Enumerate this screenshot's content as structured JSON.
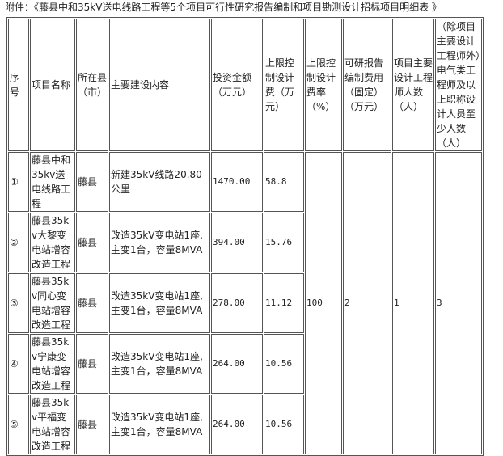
{
  "title": "附件：《藤县中和35kV送电线路工程等5个项目可行性研究报告编制和项目勘测设计招标项目明细表 》",
  "headers": [
    "序号",
    "项目名称",
    "所在县（市）",
    "主要建设内容",
    "投资金额（万元）",
    "上限控制设计费（万元）",
    "上限控制设计费率（%）",
    "可研报告编制费用（固定）（万元）",
    "项目主要设计工程师人数（人）",
    "（除项目主要设计工程师外）电气类工程师及以上职称设计人员至少人数（人）"
  ],
  "rows": [
    {
      "no": "①",
      "name": "藤县中和35kv送电线路工程",
      "county": "藤县",
      "content": "新建35kV线路20.80公里",
      "invest": "1470.00",
      "fee": "58.8"
    },
    {
      "no": "②",
      "name": "藤县35kv大黎变电站增容改造工程",
      "county": "藤县",
      "content": "改造35kV变电站1座,主变1台，容量8MVA",
      "invest": "394.00",
      "fee": "15.76"
    },
    {
      "no": "③",
      "name": "藤县35kv同心变电站增容改造工程",
      "county": "藤县",
      "content": "改造35kV变电站1座,主变1台，容量8MVA",
      "invest": "278.00",
      "fee": "11.12"
    },
    {
      "no": "④",
      "name": "藤县35kv宁康变电站增容改造工程",
      "county": "藤县",
      "content": "改造35kV变电站1座,主变1台，容量8MVA",
      "invest": "264.00",
      "fee": "10.56"
    },
    {
      "no": "⑤",
      "name": "藤县35kv平福变电站增容改造工程",
      "county": "藤县",
      "content": "改造35kV变电站1座,主变1台，容量8MVA",
      "invest": "264.00",
      "fee": "10.56"
    }
  ],
  "shared": {
    "rate": "100",
    "report_fee": "2",
    "engineers": "1",
    "staff": "3"
  }
}
